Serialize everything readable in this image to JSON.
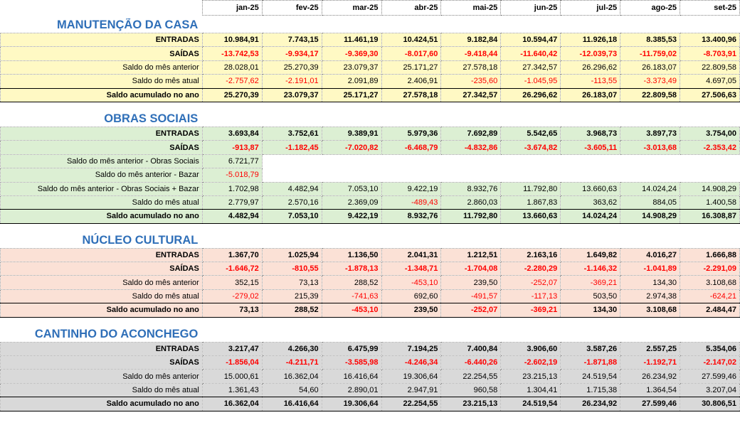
{
  "months": [
    "jan-25",
    "fev-25",
    "mar-25",
    "abr-25",
    "mai-25",
    "jun-25",
    "jul-25",
    "ago-25",
    "set-25"
  ],
  "colors": {
    "title": "#2f6fb8",
    "negative": "#ff0000",
    "manutencao_bg": "#fff9c4",
    "obras_bg": "#dcefd3",
    "nucleo_bg": "#fbe1d6",
    "cantinho_bg": "#d9d9d9"
  },
  "sections": [
    {
      "key": "manutencao",
      "title": "MANUTENÇÃO DA CASA",
      "bg": "#fff9c4",
      "rows": [
        {
          "label": "ENTRADAS",
          "style": "bold",
          "values": [
            "10.984,91",
            "7.743,15",
            "11.461,19",
            "10.424,51",
            "9.182,84",
            "10.594,47",
            "11.926,18",
            "8.385,53",
            "13.400,96"
          ]
        },
        {
          "label": "SAÍDAS",
          "style": "bold-neg",
          "values": [
            "-13.742,53",
            "-9.934,17",
            "-9.369,30",
            "-8.017,60",
            "-9.418,44",
            "-11.640,42",
            "-12.039,73",
            "-11.759,02",
            "-8.703,91"
          ]
        },
        {
          "label": "Saldo do mês anterior",
          "style": "normal",
          "values": [
            "28.028,01",
            "25.270,39",
            "23.079,37",
            "25.171,27",
            "27.578,18",
            "27.342,57",
            "26.296,62",
            "26.183,07",
            "22.809,58"
          ]
        },
        {
          "label": "Saldo do mês atual",
          "style": "normal",
          "values": [
            "-2.757,62",
            "-2.191,01",
            "2.091,89",
            "2.406,91",
            "-235,60",
            "-1.045,95",
            "-113,55",
            "-3.373,49",
            "4.697,05"
          ]
        },
        {
          "label": "Saldo acumulado no ano",
          "style": "bold-total",
          "values": [
            "25.270,39",
            "23.079,37",
            "25.171,27",
            "27.578,18",
            "27.342,57",
            "26.296,62",
            "26.183,07",
            "22.809,58",
            "27.506,63"
          ]
        }
      ]
    },
    {
      "key": "obras",
      "title": "OBRAS SOCIAIS",
      "bg": "#dcefd3",
      "rows": [
        {
          "label": "ENTRADAS",
          "style": "bold",
          "values": [
            "3.693,84",
            "3.752,61",
            "9.389,91",
            "5.979,36",
            "7.692,89",
            "5.542,65",
            "3.968,73",
            "3.897,73",
            "3.754,00"
          ]
        },
        {
          "label": "SAÍDAS",
          "style": "bold-neg",
          "values": [
            "-913,87",
            "-1.182,45",
            "-7.020,82",
            "-6.468,79",
            "-4.832,86",
            "-3.674,82",
            "-3.605,11",
            "-3.013,68",
            "-2.353,42"
          ]
        },
        {
          "label": "Saldo do mês anterior - Obras Sociais",
          "style": "normal-left",
          "values": [
            "6.721,77"
          ]
        },
        {
          "label": "Saldo do mês anterior - Bazar",
          "style": "normal-left",
          "values": [
            "-5.018,79"
          ]
        },
        {
          "label": "Saldo do mês anterior - Obras Sociais + Bazar",
          "style": "normal",
          "values": [
            "1.702,98",
            "4.482,94",
            "7.053,10",
            "9.422,19",
            "8.932,76",
            "11.792,80",
            "13.660,63",
            "14.024,24",
            "14.908,29"
          ]
        },
        {
          "label": "Saldo do mês atual",
          "style": "normal",
          "values": [
            "2.779,97",
            "2.570,16",
            "2.369,09",
            "-489,43",
            "2.860,03",
            "1.867,83",
            "363,62",
            "884,05",
            "1.400,58"
          ]
        },
        {
          "label": "Saldo acumulado no ano",
          "style": "bold-total",
          "values": [
            "4.482,94",
            "7.053,10",
            "9.422,19",
            "8.932,76",
            "11.792,80",
            "13.660,63",
            "14.024,24",
            "14.908,29",
            "16.308,87"
          ]
        }
      ]
    },
    {
      "key": "nucleo",
      "title": "NÚCLEO CULTURAL",
      "bg": "#fbe1d6",
      "rows": [
        {
          "label": "ENTRADAS",
          "style": "bold",
          "values": [
            "1.367,70",
            "1.025,94",
            "1.136,50",
            "2.041,31",
            "1.212,51",
            "2.163,16",
            "1.649,82",
            "4.016,27",
            "1.666,88"
          ]
        },
        {
          "label": "SAÍDAS",
          "style": "bold-neg",
          "values": [
            "-1.646,72",
            "-810,55",
            "-1.878,13",
            "-1.348,71",
            "-1.704,08",
            "-2.280,29",
            "-1.146,32",
            "-1.041,89",
            "-2.291,09"
          ]
        },
        {
          "label": "Saldo do mês anterior",
          "style": "normal",
          "values": [
            "352,15",
            "73,13",
            "288,52",
            "-453,10",
            "239,50",
            "-252,07",
            "-369,21",
            "134,30",
            "3.108,68"
          ]
        },
        {
          "label": "Saldo do mês atual",
          "style": "normal",
          "values": [
            "-279,02",
            "215,39",
            "-741,63",
            "692,60",
            "-491,57",
            "-117,13",
            "503,50",
            "2.974,38",
            "-624,21"
          ]
        },
        {
          "label": "Saldo acumulado no ano",
          "style": "bold-total",
          "values": [
            "73,13",
            "288,52",
            "-453,10",
            "239,50",
            "-252,07",
            "-369,21",
            "134,30",
            "3.108,68",
            "2.484,47"
          ]
        }
      ]
    },
    {
      "key": "cantinho",
      "title": "CANTINHO DO ACONCHEGO",
      "bg": "#d9d9d9",
      "rows": [
        {
          "label": "ENTRADAS",
          "style": "bold",
          "values": [
            "3.217,47",
            "4.266,30",
            "6.475,99",
            "7.194,25",
            "7.400,84",
            "3.906,60",
            "3.587,26",
            "2.557,25",
            "5.354,06"
          ]
        },
        {
          "label": "SAÍDAS",
          "style": "bold-neg",
          "values": [
            "-1.856,04",
            "-4.211,71",
            "-3.585,98",
            "-4.246,34",
            "-6.440,26",
            "-2.602,19",
            "-1.871,88",
            "-1.192,71",
            "-2.147,02"
          ]
        },
        {
          "label": "Saldo do mês anterior",
          "style": "normal",
          "values": [
            "15.000,61",
            "16.362,04",
            "16.416,64",
            "19.306,64",
            "22.254,55",
            "23.215,13",
            "24.519,54",
            "26.234,92",
            "27.599,46"
          ]
        },
        {
          "label": "Saldo do mês atual",
          "style": "normal",
          "values": [
            "1.361,43",
            "54,60",
            "2.890,01",
            "2.947,91",
            "960,58",
            "1.304,41",
            "1.715,38",
            "1.364,54",
            "3.207,04"
          ]
        },
        {
          "label": "Saldo acumulado no ano",
          "style": "bold-total",
          "values": [
            "16.362,04",
            "16.416,64",
            "19.306,64",
            "22.254,55",
            "23.215,13",
            "24.519,54",
            "26.234,92",
            "27.599,46",
            "30.806,51"
          ]
        }
      ]
    }
  ]
}
